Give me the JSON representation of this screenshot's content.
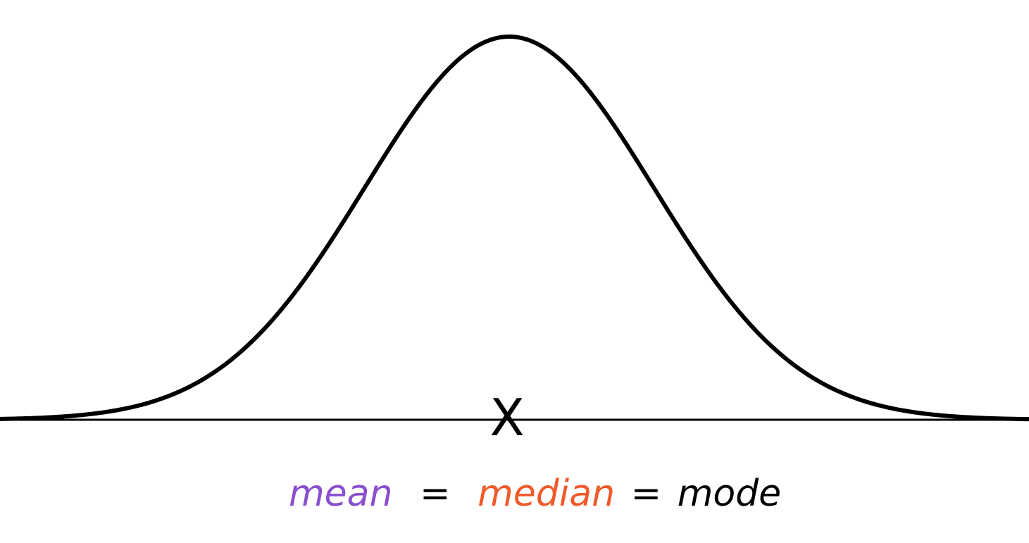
{
  "colors": {
    "curve": "#000000",
    "axis": "#000000",
    "mean": "#8a4fd0",
    "median": "#f05a2a",
    "mode": "#000000"
  },
  "marker": {
    "symbol": "X"
  },
  "annotation": {
    "mean": "mean",
    "eq1": "=",
    "median": "median",
    "eq2": "=",
    "mode": "mode"
  }
}
